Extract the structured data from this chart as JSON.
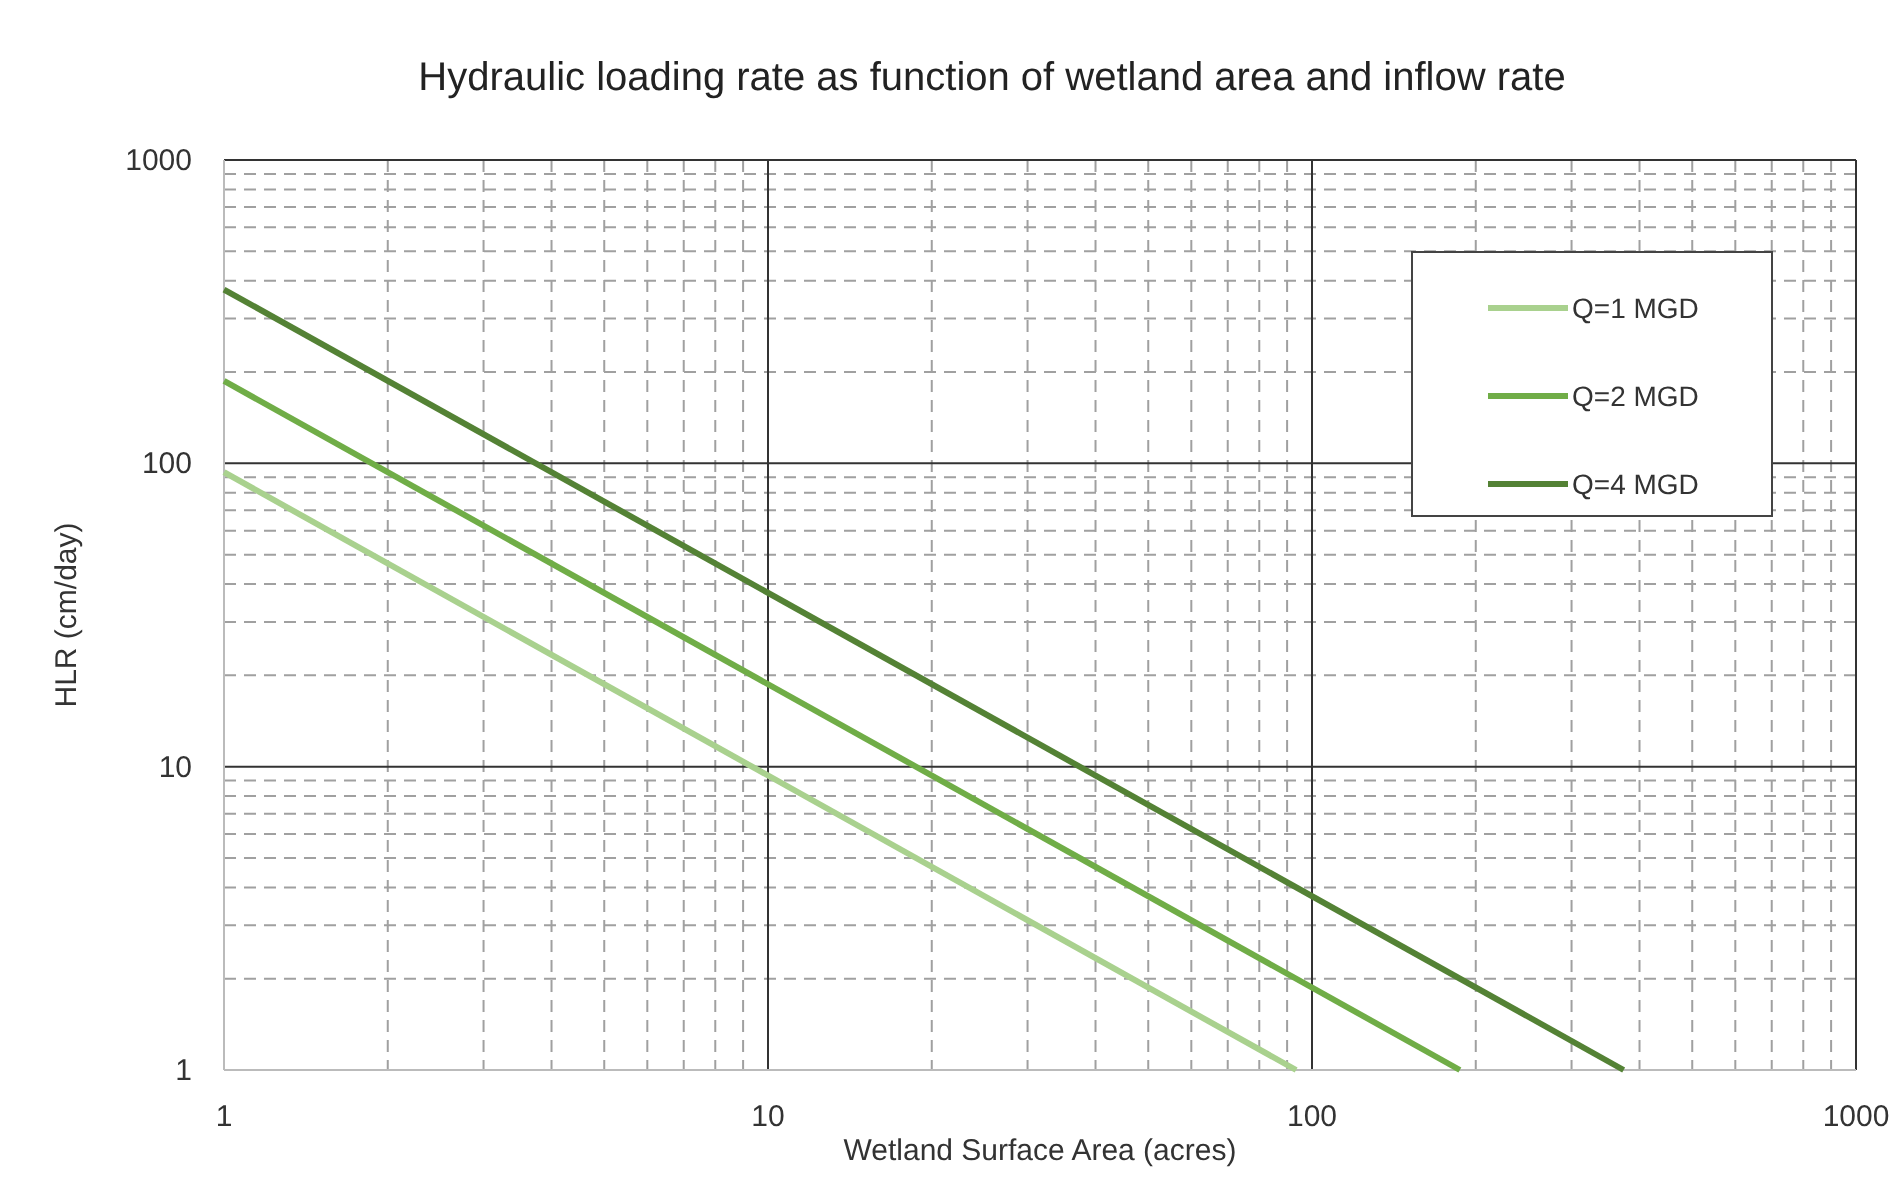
{
  "chart_data": {
    "type": "line",
    "title": "Hydraulic loading rate as function of wetland area and inflow rate",
    "xlabel": "Wetland Surface Area (acres)",
    "ylabel": "HLR (cm/day)",
    "series": [
      {
        "name": "Q=1 MGD",
        "color": "#a9d18e",
        "x": [
          1,
          93.5
        ],
        "values": [
          93.5,
          1
        ]
      },
      {
        "name": "Q=2 MGD",
        "color": "#70ad47",
        "x": [
          1,
          187
        ],
        "values": [
          187,
          1
        ]
      },
      {
        "name": "Q=4 MGD",
        "color": "#548235",
        "x": [
          1,
          374
        ],
        "values": [
          374,
          1
        ]
      }
    ],
    "xlim": [
      1,
      1000
    ],
    "ylim": [
      1,
      1000
    ],
    "xticks": [
      1,
      10,
      100,
      1000
    ],
    "yticks": [
      1,
      10,
      100,
      1000
    ],
    "log": "xy",
    "grid": true,
    "legend": "top right",
    "marker": "none",
    "line_style": "solid"
  }
}
